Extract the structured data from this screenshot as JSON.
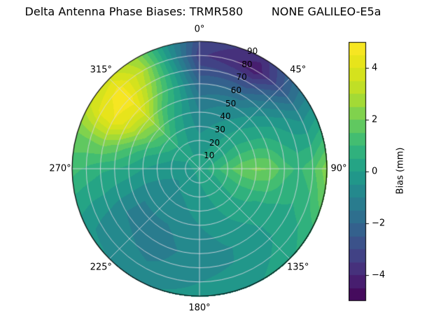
{
  "chart_data": {
    "type": "heatmap",
    "subtype": "polar_filled_contour_skyplot",
    "title": "Delta Antenna Phase Biases: TRMR580        NONE GALILEO-E5a",
    "theta_tick_labels": [
      "0°",
      "45°",
      "90°",
      "135°",
      "180°",
      "225°",
      "270°",
      "315°"
    ],
    "theta_direction": "clockwise_from_top",
    "r_tick_labels": [
      "10",
      "20",
      "30",
      "40",
      "50",
      "60",
      "70",
      "80",
      "90"
    ],
    "r_range": [
      0,
      90
    ],
    "r_label_azimuth_deg": 22.5,
    "grid_on": true,
    "contour_level_step": 0.5,
    "grid": {
      "azimuths_deg": [
        0,
        15,
        30,
        45,
        60,
        75,
        90,
        105,
        120,
        135,
        150,
        165,
        180,
        195,
        210,
        225,
        240,
        255,
        270,
        285,
        300,
        315,
        330,
        345
      ],
      "radii": [
        0,
        10,
        20,
        30,
        40,
        50,
        60,
        70,
        80,
        90
      ],
      "bias_mm": [
        [
          0.2,
          0.2,
          0.2,
          0.2,
          0.2,
          0.2,
          0.2,
          0.2,
          0.2,
          0.2,
          0.2,
          0.2,
          0.2,
          0.2,
          0.2,
          0.2,
          0.2,
          0.2,
          0.2,
          0.2,
          0.2,
          0.2,
          0.2,
          0.2
        ],
        [
          0.0,
          0.05,
          0.1,
          0.25,
          0.4,
          0.6,
          0.8,
          0.6,
          0.4,
          0.25,
          0.1,
          0.05,
          0.0,
          -0.1,
          -0.2,
          -0.25,
          -0.3,
          -0.25,
          -0.2,
          -0.1,
          0.0,
          0.05,
          0.0,
          0.0
        ],
        [
          -0.3,
          -0.15,
          0.0,
          0.25,
          0.5,
          0.95,
          1.4,
          1.0,
          0.6,
          0.35,
          0.1,
          0.0,
          -0.1,
          -0.25,
          -0.4,
          -0.5,
          -0.6,
          -0.45,
          -0.3,
          -0.05,
          0.2,
          0.4,
          0.1,
          -0.15
        ],
        [
          -0.7,
          -0.45,
          -0.2,
          0.2,
          0.6,
          1.25,
          1.9,
          1.3,
          0.7,
          0.4,
          0.1,
          -0.1,
          -0.3,
          -0.5,
          -0.7,
          -0.75,
          -0.8,
          -0.5,
          -0.2,
          0.25,
          0.8,
          1.0,
          0.3,
          -0.2
        ],
        [
          -1.0,
          -0.75,
          -0.5,
          0.0,
          0.5,
          1.3,
          2.1,
          1.35,
          0.6,
          0.3,
          0.0,
          -0.25,
          -0.5,
          -0.7,
          -0.9,
          -0.95,
          -1.0,
          -0.5,
          0.0,
          0.6,
          1.6,
          2.0,
          0.7,
          -0.2
        ],
        [
          -1.4,
          -1.2,
          -1.0,
          -0.35,
          0.3,
          1.1,
          2.0,
          1.2,
          0.4,
          0.1,
          -0.2,
          -0.45,
          -0.7,
          -0.9,
          -1.1,
          -1.05,
          -1.0,
          -0.35,
          0.3,
          1.2,
          2.6,
          3.0,
          1.2,
          0.0
        ],
        [
          -2.0,
          -1.9,
          -1.8,
          -0.9,
          0.0,
          0.6,
          1.2,
          0.8,
          0.3,
          -0.05,
          -0.4,
          -0.6,
          -0.8,
          -1.0,
          -1.2,
          -1.1,
          -1.0,
          -0.2,
          0.5,
          1.8,
          3.8,
          4.2,
          2.0,
          0.1
        ],
        [
          -2.8,
          -2.9,
          -3.0,
          -1.7,
          -0.4,
          0.25,
          0.9,
          0.6,
          0.3,
          -0.05,
          -0.4,
          -0.55,
          -0.7,
          -0.9,
          -1.1,
          -0.95,
          -0.8,
          0.0,
          0.6,
          2.2,
          4.5,
          4.8,
          2.6,
          0.0
        ],
        [
          -3.4,
          -3.9,
          -4.4,
          -2.65,
          -0.9,
          0.25,
          1.4,
          0.95,
          0.5,
          0.15,
          -0.2,
          -0.35,
          -0.5,
          -0.7,
          -0.9,
          -0.75,
          -0.6,
          0.1,
          0.9,
          2.0,
          4.2,
          4.7,
          3.0,
          -0.3
        ],
        [
          -3.0,
          -3.4,
          -3.8,
          -2.2,
          -0.6,
          0.9,
          2.4,
          1.8,
          0.8,
          0.4,
          0.0,
          -0.15,
          -0.3,
          -0.45,
          -0.6,
          -0.5,
          -0.4,
          0.3,
          1.2,
          1.8,
          3.4,
          3.8,
          2.6,
          -0.5
        ]
      ]
    },
    "colorbar": {
      "label": "Bias (mm)",
      "tick_labels": [
        "4",
        "2",
        "0",
        "−2",
        "−4"
      ],
      "tick_values": [
        4,
        2,
        0,
        -2,
        -4
      ],
      "range": [
        -5,
        5
      ],
      "colormap": "viridis",
      "colormap_stops": [
        "#440154",
        "#482878",
        "#3e4a89",
        "#31688e",
        "#26828e",
        "#1f9e89",
        "#35b779",
        "#6ece58",
        "#b5de2b",
        "#dfe318",
        "#fde725"
      ]
    },
    "background_color": "#ffffff",
    "grid_line_color": "#d9d9e3",
    "outline_color": "#000000"
  }
}
